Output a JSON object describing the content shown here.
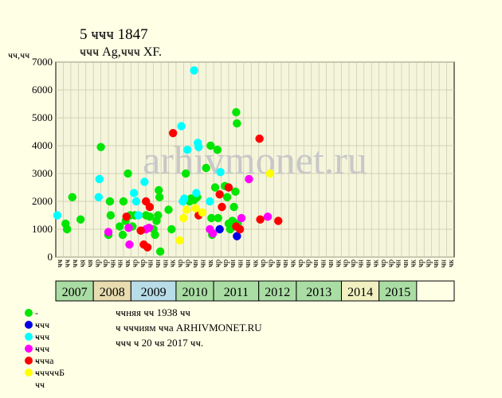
{
  "header": {
    "title": "5 ҹҹҹ 1847",
    "subtitle": "ҹҹҹ Ag,ҹҹҹ XF.",
    "y_unit": "ҹҹ,ҹҹ"
  },
  "watermark": "arhivmonet.ru",
  "legend": [
    {
      "label": "- ҹҹҹ",
      "color": "#00e600"
    },
    {
      "label": "- ҹҹҹ",
      "color": "#0000e6"
    },
    {
      "label": "- ҹҹҹ",
      "color": "#00ffff"
    },
    {
      "label": "- ҹҹҹа",
      "color": "#ff00ff"
    },
    {
      "label": "- ҹҹҹҹҹБ",
      "color": "#ff0000"
    },
    {
      "label": "- ҹҹ",
      "color": "#ffff00"
    }
  ],
  "notes": [
    "ҹҹняя ҹҹ 1938 ҹҹ",
    "ҹ ҹҹҹиям ҹҹа ARHIVMONET.RU",
    "ҹҹҹ ҹ 20 ҹя 2017 ҹҹ."
  ],
  "colors": {
    "background": "#ffffe6",
    "plot_background": "#f5f5dc",
    "grid": "#c8c8aa",
    "year_colors": [
      "#aadda4",
      "#e8dcb0",
      "#b8dce8",
      "#aadda4",
      "#aadda4",
      "#aadda4",
      "#aadda4",
      "#f0f0c0"
    ]
  },
  "chart_data": {
    "type": "scatter",
    "ylim": [
      0,
      7000
    ],
    "yticks": [
      0,
      1000,
      2000,
      3000,
      4000,
      5000,
      6000,
      7000
    ],
    "grid": true,
    "x_labels": [
      "ҹҹ",
      "ҹҹ",
      "ҹҹ",
      "ҹя",
      "ҹя",
      "ҹр",
      "ҹр",
      "ҹн",
      "ҹн",
      "ҹк",
      "ҹр",
      "ҹр",
      "ҹн",
      "ҹн",
      "ҹн",
      "ҹк",
      "ҹр",
      "ҹр",
      "ҹн",
      "ҹн",
      "ҹк",
      "ҹр",
      "ҹр",
      "ҹн",
      "ҹн",
      "ҹн",
      "ҹк",
      "ҹр",
      "ҹр",
      "ҹн",
      "ҹн",
      "ҹк",
      "ҹр",
      "ҹр",
      "ҹн",
      "ҹн",
      "ҹн",
      "ҹк",
      "ҹр",
      "ҹр",
      "ҹн",
      "ҹн",
      "ҹк",
      "ҹр",
      "ҹр",
      "ҹн",
      "ҹн",
      "ҹк",
      "ҹр",
      "ҹр",
      "ҹн",
      "ҹн",
      "ҹк"
    ],
    "years": [
      {
        "label": "2007",
        "start": 0,
        "end": 5
      },
      {
        "label": "2008",
        "start": 5,
        "end": 10
      },
      {
        "label": "2009",
        "start": 10,
        "end": 16
      },
      {
        "label": "2010",
        "start": 16,
        "end": 21
      },
      {
        "label": "2011",
        "start": 21,
        "end": 27
      },
      {
        "label": "2012",
        "start": 27,
        "end": 32
      },
      {
        "label": "2013",
        "start": 32,
        "end": 38
      },
      {
        "label": "2014",
        "start": 38,
        "end": 43
      },
      {
        "label": "2015",
        "start": 43,
        "end": 48
      }
    ],
    "series": [
      {
        "color": "#00e600",
        "points": [
          [
            1.3,
            1200
          ],
          [
            1.5,
            1000
          ],
          [
            2.2,
            2150
          ],
          [
            3.3,
            1350
          ],
          [
            6.0,
            3950
          ],
          [
            7.0,
            800
          ],
          [
            7.2,
            2000
          ],
          [
            7.3,
            1500
          ],
          [
            8.5,
            1100
          ],
          [
            8.9,
            800
          ],
          [
            9.0,
            2000
          ],
          [
            9.3,
            1300
          ],
          [
            9.6,
            3000
          ],
          [
            9.9,
            1500
          ],
          [
            10.2,
            1100
          ],
          [
            10.5,
            1500
          ],
          [
            12.0,
            1500
          ],
          [
            12.5,
            1450
          ],
          [
            13.0,
            1000
          ],
          [
            13.2,
            800
          ],
          [
            13.4,
            1300
          ],
          [
            13.6,
            1500
          ],
          [
            13.7,
            2400
          ],
          [
            13.8,
            2150
          ],
          [
            13.9,
            200
          ],
          [
            15.0,
            1700
          ],
          [
            15.4,
            1000
          ],
          [
            17.3,
            3000
          ],
          [
            17.8,
            2000
          ],
          [
            18.0,
            2100
          ],
          [
            18.4,
            2050
          ],
          [
            18.8,
            2150
          ],
          [
            20.0,
            3200
          ],
          [
            20.6,
            4000
          ],
          [
            20.7,
            1400
          ],
          [
            20.8,
            800
          ],
          [
            21.2,
            2500
          ],
          [
            21.5,
            3850
          ],
          [
            21.6,
            1400
          ],
          [
            22.5,
            2550
          ],
          [
            22.8,
            2150
          ],
          [
            23.0,
            1200
          ],
          [
            23.2,
            1000
          ],
          [
            23.5,
            1300
          ],
          [
            23.7,
            1800
          ],
          [
            23.9,
            2350
          ],
          [
            24.0,
            5200
          ],
          [
            24.1,
            4800
          ],
          [
            24.2,
            1200
          ]
        ]
      },
      {
        "color": "#0000e6",
        "points": [
          [
            21.8,
            1000
          ],
          [
            24.1,
            750
          ]
        ]
      },
      {
        "color": "#00ffff",
        "points": [
          [
            0.2,
            1500
          ],
          [
            5.7,
            2150
          ],
          [
            5.8,
            2800
          ],
          [
            10.4,
            2300
          ],
          [
            10.7,
            2000
          ],
          [
            11.0,
            1500
          ],
          [
            11.8,
            2700
          ],
          [
            16.7,
            4700
          ],
          [
            16.9,
            2000
          ],
          [
            17.1,
            2100
          ],
          [
            17.5,
            3850
          ],
          [
            18.4,
            6700
          ],
          [
            18.7,
            2300
          ],
          [
            18.9,
            4100
          ],
          [
            19.0,
            3950
          ],
          [
            20.5,
            2000
          ],
          [
            21.9,
            3050
          ]
        ]
      },
      {
        "color": "#ff00ff",
        "points": [
          [
            7.0,
            900
          ],
          [
            9.7,
            1050
          ],
          [
            9.8,
            450
          ],
          [
            12.0,
            1000
          ],
          [
            12.4,
            1050
          ],
          [
            20.5,
            1000
          ],
          [
            20.9,
            850
          ],
          [
            24.7,
            1400
          ],
          [
            25.7,
            2800
          ],
          [
            28.2,
            1450
          ]
        ]
      },
      {
        "color": "#ff0000",
        "points": [
          [
            9.4,
            1450
          ],
          [
            11.3,
            950
          ],
          [
            11.7,
            450
          ],
          [
            12.0,
            2000
          ],
          [
            12.2,
            350
          ],
          [
            12.5,
            1800
          ],
          [
            15.6,
            4450
          ],
          [
            19.0,
            1500
          ],
          [
            21.8,
            2250
          ],
          [
            22.1,
            1800
          ],
          [
            23.0,
            2500
          ],
          [
            24.0,
            1100
          ],
          [
            24.5,
            1000
          ],
          [
            27.1,
            4250
          ],
          [
            27.2,
            1350
          ],
          [
            29.6,
            1300
          ]
        ]
      },
      {
        "color": "#ffff00",
        "points": [
          [
            16.5,
            600
          ],
          [
            17.0,
            1400
          ],
          [
            17.4,
            1700
          ],
          [
            18.6,
            1750
          ],
          [
            19.5,
            1600
          ],
          [
            28.5,
            3000
          ]
        ]
      }
    ]
  }
}
